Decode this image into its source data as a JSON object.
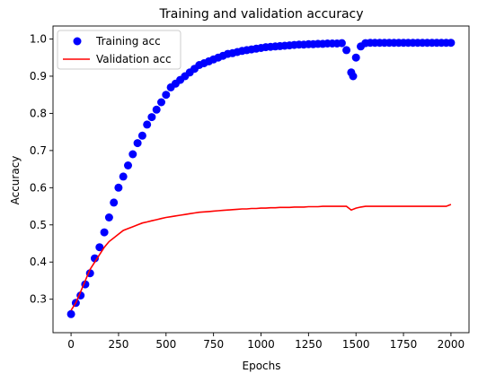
{
  "chart_data": {
    "type": "line",
    "title": "Training and validation accuracy",
    "xlabel": "Epochs",
    "ylabel": "Accuracy",
    "xlim": [
      -95,
      2095
    ],
    "ylim": [
      0.21,
      1.035
    ],
    "x_ticks": [
      0,
      250,
      500,
      750,
      1000,
      1250,
      1500,
      1750,
      2000
    ],
    "y_ticks": [
      0.3,
      0.4,
      0.5,
      0.6,
      0.7,
      0.8,
      0.9,
      1.0
    ],
    "x_tick_labels": [
      "0",
      "250",
      "500",
      "750",
      "1000",
      "1250",
      "1500",
      "1750",
      "2000"
    ],
    "y_tick_labels": [
      "0.3",
      "0.4",
      "0.5",
      "0.6",
      "0.7",
      "0.8",
      "0.9",
      "1.0"
    ],
    "grid": false,
    "legend_position": "top-left",
    "series": [
      {
        "name": "Training acc",
        "style": "scatter",
        "color": "#0000ff",
        "x": [
          0,
          25,
          50,
          75,
          100,
          125,
          150,
          175,
          200,
          225,
          250,
          275,
          300,
          325,
          350,
          375,
          400,
          425,
          450,
          475,
          500,
          525,
          550,
          575,
          600,
          625,
          650,
          675,
          700,
          725,
          750,
          775,
          800,
          825,
          850,
          875,
          900,
          925,
          950,
          975,
          1000,
          1025,
          1050,
          1075,
          1100,
          1125,
          1150,
          1175,
          1200,
          1225,
          1250,
          1275,
          1300,
          1325,
          1350,
          1375,
          1400,
          1425,
          1450,
          1475,
          1485,
          1500,
          1525,
          1550,
          1575,
          1600,
          1625,
          1650,
          1675,
          1700,
          1725,
          1750,
          1775,
          1800,
          1825,
          1850,
          1875,
          1900,
          1925,
          1950,
          1975,
          2000
        ],
        "values": [
          0.26,
          0.29,
          0.31,
          0.34,
          0.37,
          0.41,
          0.44,
          0.48,
          0.52,
          0.56,
          0.6,
          0.63,
          0.66,
          0.69,
          0.72,
          0.74,
          0.77,
          0.79,
          0.81,
          0.83,
          0.85,
          0.87,
          0.88,
          0.89,
          0.9,
          0.91,
          0.92,
          0.93,
          0.935,
          0.94,
          0.945,
          0.95,
          0.955,
          0.96,
          0.962,
          0.965,
          0.968,
          0.97,
          0.972,
          0.974,
          0.976,
          0.978,
          0.979,
          0.98,
          0.981,
          0.982,
          0.983,
          0.984,
          0.985,
          0.985,
          0.986,
          0.986,
          0.987,
          0.987,
          0.988,
          0.988,
          0.988,
          0.989,
          0.97,
          0.91,
          0.9,
          0.95,
          0.98,
          0.989,
          0.99,
          0.99,
          0.99,
          0.99,
          0.99,
          0.99,
          0.99,
          0.99,
          0.99,
          0.99,
          0.99,
          0.99,
          0.99,
          0.99,
          0.99,
          0.99,
          0.99,
          0.99
        ]
      },
      {
        "name": "Validation acc",
        "style": "line",
        "color": "#ff0000",
        "x": [
          0,
          25,
          50,
          75,
          100,
          125,
          150,
          175,
          200,
          225,
          250,
          275,
          300,
          325,
          350,
          375,
          400,
          425,
          450,
          475,
          500,
          525,
          550,
          575,
          600,
          625,
          650,
          675,
          700,
          725,
          750,
          775,
          800,
          825,
          850,
          875,
          900,
          925,
          950,
          975,
          1000,
          1025,
          1050,
          1075,
          1100,
          1125,
          1150,
          1175,
          1200,
          1225,
          1250,
          1275,
          1300,
          1325,
          1350,
          1375,
          1400,
          1425,
          1450,
          1475,
          1500,
          1525,
          1550,
          1575,
          1600,
          1625,
          1650,
          1675,
          1700,
          1725,
          1750,
          1775,
          1800,
          1825,
          1850,
          1875,
          1900,
          1925,
          1950,
          1975,
          2000
        ],
        "values": [
          0.27,
          0.29,
          0.32,
          0.35,
          0.38,
          0.4,
          0.42,
          0.44,
          0.455,
          0.465,
          0.475,
          0.485,
          0.49,
          0.495,
          0.5,
          0.505,
          0.508,
          0.511,
          0.514,
          0.517,
          0.52,
          0.522,
          0.524,
          0.526,
          0.528,
          0.53,
          0.532,
          0.534,
          0.535,
          0.536,
          0.537,
          0.538,
          0.539,
          0.54,
          0.541,
          0.542,
          0.543,
          0.543,
          0.544,
          0.544,
          0.545,
          0.545,
          0.546,
          0.546,
          0.547,
          0.547,
          0.547,
          0.548,
          0.548,
          0.548,
          0.549,
          0.549,
          0.549,
          0.55,
          0.55,
          0.55,
          0.55,
          0.55,
          0.55,
          0.54,
          0.545,
          0.548,
          0.55,
          0.55,
          0.55,
          0.55,
          0.55,
          0.55,
          0.55,
          0.55,
          0.55,
          0.55,
          0.55,
          0.55,
          0.55,
          0.55,
          0.55,
          0.55,
          0.55,
          0.55,
          0.555
        ]
      }
    ]
  }
}
